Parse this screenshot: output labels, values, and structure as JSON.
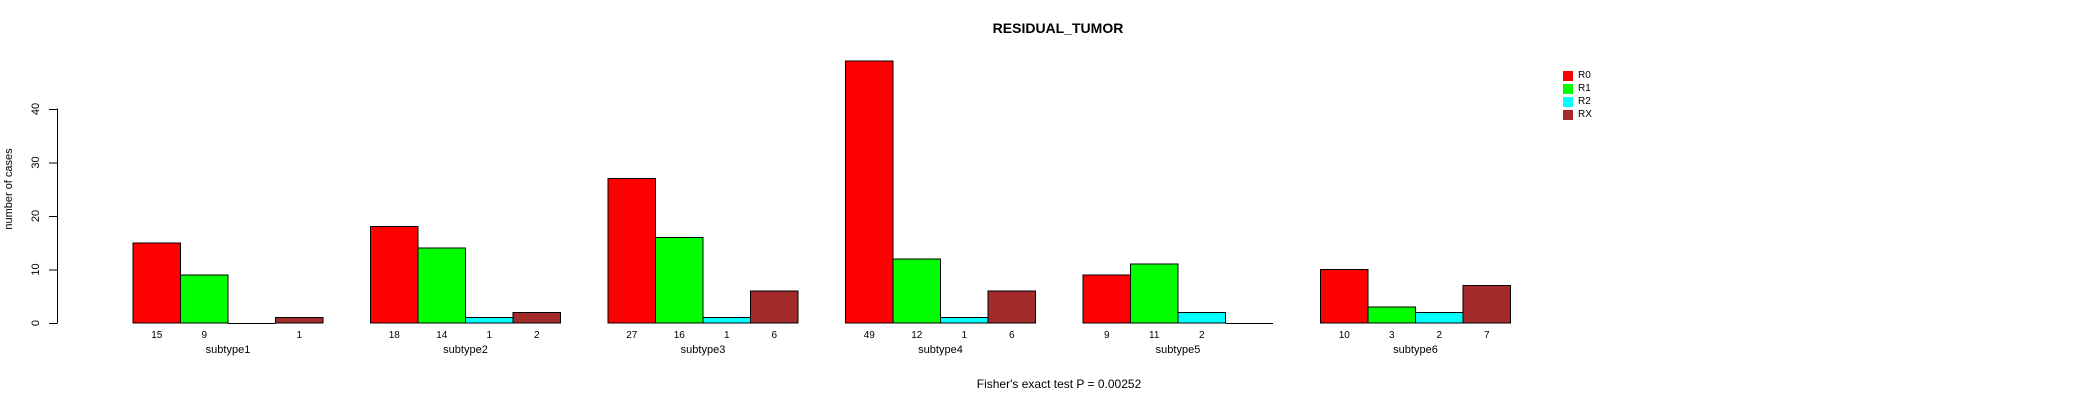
{
  "title": "RESIDUAL_TUMOR",
  "caption": "Fisher's exact test P = 0.00252",
  "chart_data": {
    "type": "bar",
    "title": "RESIDUAL_TUMOR",
    "xlabel": "",
    "ylabel": "number of cases",
    "categories": [
      "subtype1",
      "subtype2",
      "subtype3",
      "subtype4",
      "subtype5",
      "subtype6"
    ],
    "series": [
      {
        "name": "R0",
        "color": "#ff0000",
        "values": [
          15,
          18,
          27,
          49,
          9,
          10
        ]
      },
      {
        "name": "R1",
        "color": "#00ff00",
        "values": [
          9,
          14,
          16,
          12,
          11,
          3
        ]
      },
      {
        "name": "R2",
        "color": "#00ffff",
        "values": [
          0,
          1,
          1,
          1,
          2,
          2
        ]
      },
      {
        "name": "RX",
        "color": "#a52a2a",
        "values": [
          1,
          2,
          6,
          6,
          0,
          7
        ]
      }
    ],
    "yticks": [
      0,
      10,
      20,
      30,
      40
    ],
    "ylim": [
      0,
      40
    ],
    "grid": false,
    "legend_position": "right",
    "bar_value_labels": true,
    "hide_zero_value_labels": true,
    "annotation": "Fisher's exact test P = 0.00252"
  }
}
